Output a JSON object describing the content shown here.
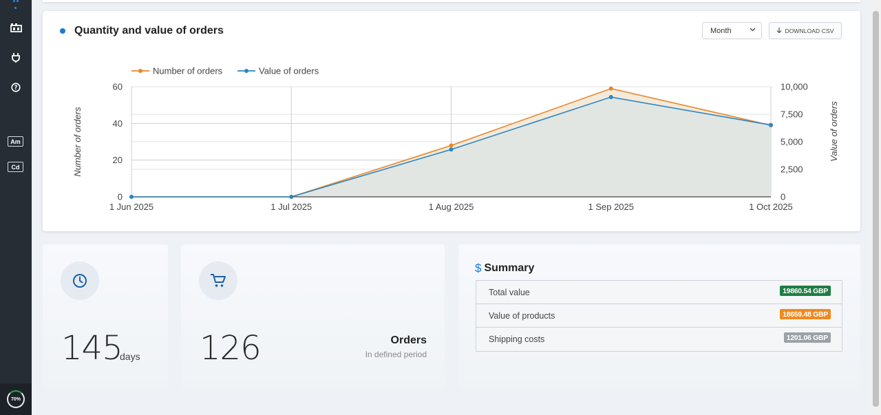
{
  "sidebar": {
    "badges": [
      "Am",
      "Cd"
    ],
    "progress_label": "70%",
    "progress_value": 0.7
  },
  "chart_card": {
    "title": "Quantity and value of orders",
    "period_select": "Month",
    "download_label": "DOWNLOAD CSV"
  },
  "chart_data": {
    "type": "line",
    "x": [
      "1 Jun 2025",
      "1 Jul 2025",
      "1 Aug 2025",
      "1 Sep 2025",
      "1 Oct 2025"
    ],
    "series": [
      {
        "name": "Number of orders",
        "axis": "left",
        "color": "#e8862a",
        "values": [
          0,
          0,
          28,
          59,
          39
        ]
      },
      {
        "name": "Value of orders",
        "axis": "right",
        "color": "#2b86c5",
        "values": [
          0,
          0,
          4300,
          9060,
          6520
        ]
      }
    ],
    "ylabel": "Number of orders",
    "y2label": "Value of orders",
    "ylim": [
      0,
      60
    ],
    "y2lim": [
      0,
      10000
    ],
    "yticks": [
      "0",
      "20",
      "40",
      "60"
    ],
    "y2ticks": [
      "0",
      "2,500",
      "5,000",
      "7,500",
      "10,000"
    ],
    "legend_position": "top-left"
  },
  "stats": {
    "days": {
      "value": "145",
      "unit": "days"
    },
    "orders": {
      "value": "126",
      "label": "Orders",
      "sub": "In defined period"
    }
  },
  "summary": {
    "title": "Summary",
    "rows": [
      {
        "label": "Total value",
        "value": "19860.54 GBP",
        "color": "#1e7d43"
      },
      {
        "label": "Value of products",
        "value": "18659.48 GBP",
        "color": "#ef8a1f"
      },
      {
        "label": "Shipping costs",
        "value": "1201.06 GBP",
        "color": "#9aa1a8"
      }
    ]
  }
}
